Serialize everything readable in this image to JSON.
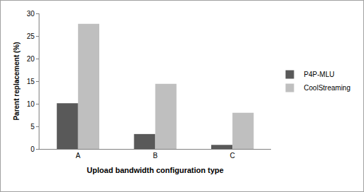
{
  "chart_data": {
    "type": "bar",
    "categories": [
      "A",
      "B",
      "C"
    ],
    "series": [
      {
        "name": "P4P-MLU",
        "color": "#595959",
        "values": [
          10.1,
          3.3,
          0.9
        ]
      },
      {
        "name": "CoolStreaming",
        "color": "#bfbfbf",
        "values": [
          27.7,
          14.4,
          8.0
        ]
      }
    ],
    "xlabel": "Upload bandwidth configuration type",
    "ylabel": "Parent replacement (%)",
    "ylim": [
      0,
      30
    ],
    "yticks": [
      0,
      5,
      10,
      15,
      20,
      25,
      30
    ],
    "grid": false,
    "legend": "right"
  }
}
